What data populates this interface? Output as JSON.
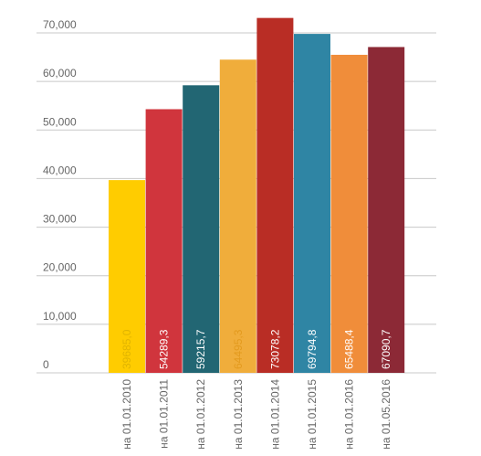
{
  "chart_data": {
    "type": "bar",
    "title": "",
    "xlabel": "",
    "ylabel": "",
    "ylim": [
      0,
      70000
    ],
    "yticks": [
      0,
      10000,
      20000,
      30000,
      40000,
      50000,
      60000,
      70000
    ],
    "ytick_labels": [
      "0",
      "10,000",
      "20,000",
      "30,000",
      "40,000",
      "50,000",
      "60,000",
      "70,000"
    ],
    "grid": true,
    "legend": "none",
    "categories": [
      "на 01.01.2010",
      "на 01.01.2011",
      "на 01.01.2012",
      "на 01.01.2013",
      "на 01.01.2014",
      "на 01.01.2015",
      "на 01.01.2016",
      "на 01.05.2016"
    ],
    "values": [
      39685.0,
      54289.3,
      59215.7,
      64495.3,
      73078.2,
      69794.8,
      65488.4,
      67090.7
    ],
    "data_labels": [
      "39685,0",
      "54289,3",
      "59215,7",
      "64495,3",
      "73078,2",
      "69794,8",
      "65488,4",
      "67090,7"
    ],
    "colors": [
      "#ffcc00",
      "#d0353d",
      "#226673",
      "#f0ad3b",
      "#b92d25",
      "#2f85a4",
      "#f08d3a",
      "#8c2936"
    ],
    "label_colors": [
      "#e0b400",
      "#ffffff",
      "#ffffff",
      "#e39a1e",
      "#ffffff",
      "#ffffff",
      "#ffffff",
      "#ffffff"
    ],
    "grid_color": "#c8c8c8"
  }
}
